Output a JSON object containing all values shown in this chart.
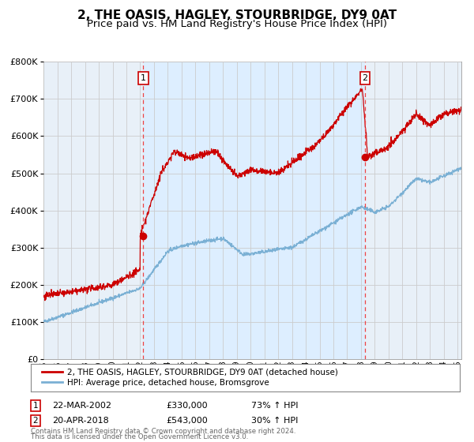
{
  "title": "2, THE OASIS, HAGLEY, STOURBRIDGE, DY9 0AT",
  "subtitle": "Price paid vs. HM Land Registry's House Price Index (HPI)",
  "hpi_label": "HPI: Average price, detached house, Bromsgrove",
  "property_label": "2, THE OASIS, HAGLEY, STOURBRIDGE, DY9 0AT (detached house)",
  "footer1": "Contains HM Land Registry data © Crown copyright and database right 2024.",
  "footer2": "This data is licensed under the Open Government Licence v3.0.",
  "transaction1": {
    "number": 1,
    "date": "22-MAR-2002",
    "price": "£330,000",
    "change": "73% ↑ HPI"
  },
  "transaction2": {
    "number": 2,
    "date": "20-APR-2018",
    "price": "£543,000",
    "change": "30% ↑ HPI"
  },
  "red_line_color": "#cc0000",
  "blue_line_color": "#7ab0d4",
  "shaded_bg": "#ddeeff",
  "outer_bg": "#e8f0f8",
  "marker_color": "#cc0000",
  "vline_color": "#ee4444",
  "grid_color": "#cccccc",
  "white_bg": "#ffffff",
  "ylim": [
    0,
    800000
  ],
  "xlim_start": 1995.0,
  "xlim_end": 2025.3,
  "transaction1_x": 2002.22,
  "transaction1_y": 330000,
  "transaction2_x": 2018.3,
  "transaction2_y": 543000,
  "title_fontsize": 11,
  "subtitle_fontsize": 9.5,
  "yticks": [
    0,
    100000,
    200000,
    300000,
    400000,
    500000,
    600000,
    700000,
    800000
  ]
}
